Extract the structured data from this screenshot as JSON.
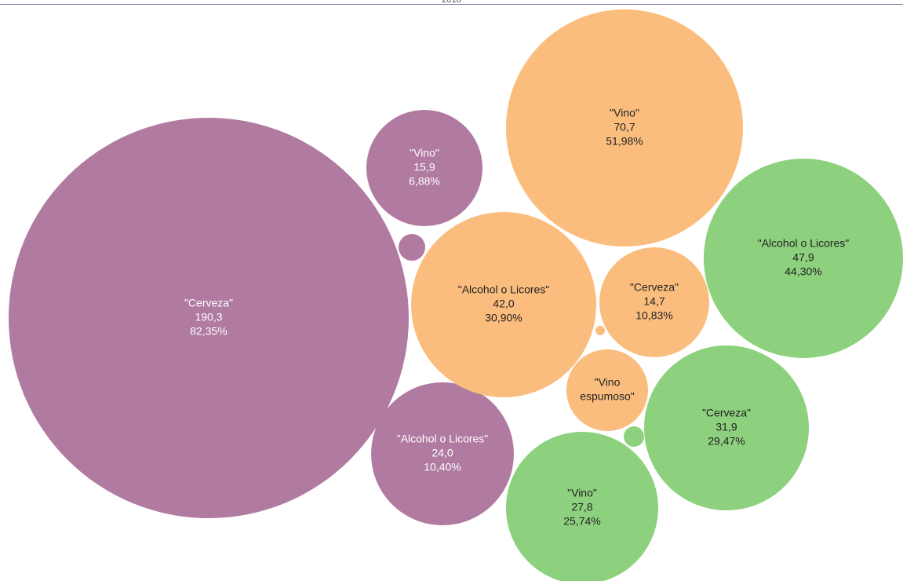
{
  "header": {
    "year": "2018"
  },
  "colors": {
    "purple": "#b07aa1",
    "orange": "#fbbd7e",
    "green": "#8dd17e",
    "label_dark": "#222222",
    "label_light": "#ffffff"
  },
  "chart_data": {
    "type": "bubble",
    "title": "2018",
    "unit_note": "",
    "bubbles": [
      {
        "group": "purple",
        "category": "\"Cerveza\"",
        "value": "190,3",
        "percent": "82,35%",
        "v": 190.3
      },
      {
        "group": "purple",
        "category": "\"Vino\"",
        "value": "15,9",
        "percent": "6,88%",
        "v": 15.9
      },
      {
        "group": "purple",
        "category": "\"Alcohol o Licores\"",
        "value": "24,0",
        "percent": "10,40%",
        "v": 24.0
      },
      {
        "group": "purple",
        "category": "",
        "value": "",
        "percent": "",
        "v": 0.9
      },
      {
        "group": "orange",
        "category": "\"Vino\"",
        "value": "70,7",
        "percent": "51,98%",
        "v": 70.7
      },
      {
        "group": "orange",
        "category": "\"Alcohol o Licores\"",
        "value": "42,0",
        "percent": "30,90%",
        "v": 42.0
      },
      {
        "group": "orange",
        "category": "\"Cerveza\"",
        "value": "14,7",
        "percent": "10,83%",
        "v": 14.7
      },
      {
        "group": "orange",
        "category": "\"Vino espumoso\"",
        "value": "",
        "percent": "",
        "v": 8.0
      },
      {
        "group": "orange",
        "category": "",
        "value": "",
        "percent": "",
        "v": 0.1
      },
      {
        "group": "green",
        "category": "\"Alcohol o Licores\"",
        "value": "47,9",
        "percent": "44,30%",
        "v": 47.9
      },
      {
        "group": "green",
        "category": "\"Cerveza\"",
        "value": "31,9",
        "percent": "29,47%",
        "v": 31.9
      },
      {
        "group": "green",
        "category": "\"Vino\"",
        "value": "27,8",
        "percent": "25,74%",
        "v": 27.8
      },
      {
        "group": "green",
        "category": "",
        "value": "",
        "percent": "",
        "v": 0.5
      }
    ]
  }
}
